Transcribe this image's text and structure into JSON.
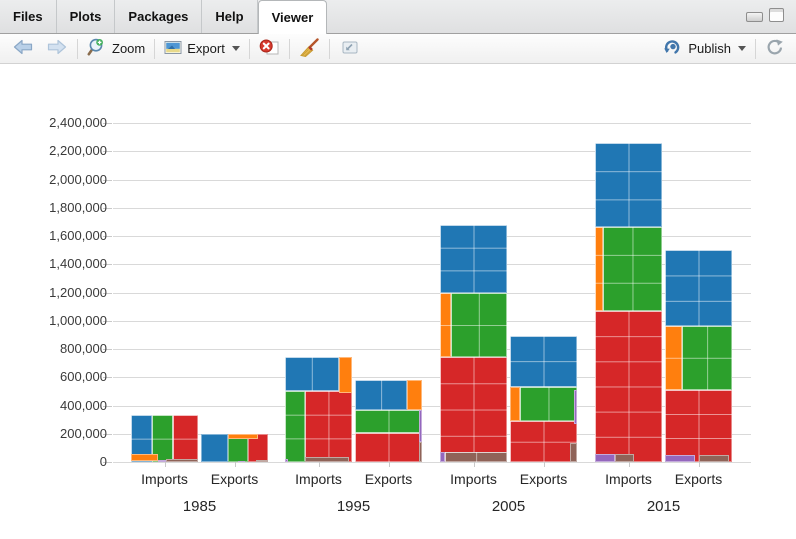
{
  "tabs": {
    "items": [
      {
        "label": "Files"
      },
      {
        "label": "Plots"
      },
      {
        "label": "Packages"
      },
      {
        "label": "Help"
      },
      {
        "label": "Viewer"
      }
    ],
    "active": "Viewer"
  },
  "window_controls": {
    "minimize": "minimize",
    "maximize": "maximize"
  },
  "toolbar": {
    "zoom": "Zoom",
    "export": "Export",
    "publish": "Publish"
  },
  "chart_data": {
    "type": "bar",
    "subtype": "treemap-stacked-bars",
    "title": "",
    "xlabel": "",
    "ylabel": "",
    "ylim": [
      0,
      2400000
    ],
    "ytick_step": 200000,
    "grid": true,
    "legend": false,
    "yticks": [
      "0",
      "200,000",
      "400,000",
      "600,000",
      "800,000",
      "1,000,000",
      "1,200,000",
      "1,400,000",
      "1,600,000",
      "1,800,000",
      "2,000,000",
      "2,200,000",
      "2,400,000"
    ],
    "colors": {
      "blue": "#2077b4",
      "green": "#2ca02c",
      "red": "#d62728",
      "orange": "#ff7f0e",
      "purple": "#9467bd",
      "brown": "#8f6358"
    },
    "groups": [
      {
        "year": "1985",
        "bars": [
          {
            "label": "Imports",
            "total": 335000,
            "segments": {
              "blue": 85000,
              "green": 90000,
              "red": 115000,
              "orange": 22000,
              "purple": 4000,
              "brown": 19000
            },
            "mosaic": [
              {
                "c": "blue",
                "x": 0,
                "y": 0,
                "w": 0.32,
                "h": 1
              },
              {
                "c": "green",
                "x": 0.32,
                "y": 0,
                "w": 0.3,
                "h": 1
              },
              {
                "c": "red",
                "x": 0.62,
                "y": 0,
                "w": 0.38,
                "h": 1
              },
              {
                "c": "orange",
                "x": 0,
                "y": 0.02,
                "w": 0.4,
                "h": 0.155
              },
              {
                "c": "purple",
                "x": 0.4,
                "y": 0,
                "w": 0.12,
                "h": 0.035
              },
              {
                "c": "brown",
                "x": 0.52,
                "y": 0,
                "w": 0.48,
                "h": 0.06
              }
            ]
          },
          {
            "label": "Exports",
            "total": 195000,
            "segments": {
              "blue": 76000,
              "green": 45000,
              "red": 52000,
              "orange": 15000,
              "purple": 2000,
              "brown": 5000
            },
            "mosaic": [
              {
                "c": "blue",
                "x": 0,
                "y": 0,
                "w": 0.4,
                "h": 1
              },
              {
                "c": "green",
                "x": 0.4,
                "y": 0,
                "w": 0.3,
                "h": 1
              },
              {
                "c": "red",
                "x": 0.7,
                "y": 0,
                "w": 0.3,
                "h": 1
              },
              {
                "c": "orange",
                "x": 0.4,
                "y": 0.83,
                "w": 0.45,
                "h": 0.17
              },
              {
                "c": "purple",
                "x": 0.55,
                "y": 0,
                "w": 0.1,
                "h": 0.05
              },
              {
                "c": "brown",
                "x": 0.82,
                "y": 0,
                "w": 0.18,
                "h": 0.06
              }
            ]
          }
        ]
      },
      {
        "year": "1995",
        "bars": [
          {
            "label": "Imports",
            "total": 740000,
            "segments": {
              "blue": 189000,
              "green": 147000,
              "red": 329000,
              "orange": 50000,
              "purple": 2000,
              "brown": 23000
            },
            "mosaic": [
              {
                "c": "green",
                "x": 0,
                "y": 0,
                "w": 0.3,
                "h": 0.68
              },
              {
                "c": "red",
                "x": 0.3,
                "y": 0,
                "w": 0.7,
                "h": 0.68
              },
              {
                "c": "blue",
                "x": 0,
                "y": 0.68,
                "w": 0.8,
                "h": 0.32
              },
              {
                "c": "orange",
                "x": 0.8,
                "y": 0.66,
                "w": 0.2,
                "h": 0.34
              },
              {
                "c": "purple",
                "x": 0,
                "y": 0,
                "w": 0.05,
                "h": 0.025
              },
              {
                "c": "brown",
                "x": 0.3,
                "y": 0,
                "w": 0.66,
                "h": 0.045
              }
            ]
          },
          {
            "label": "Exports",
            "total": 580000,
            "segments": {
              "blue": 167000,
              "green": 149000,
              "red": 200000,
              "orange": 47000,
              "purple": 11000,
              "brown": 6000
            },
            "mosaic": [
              {
                "c": "red",
                "x": 0,
                "y": 0,
                "w": 1,
                "h": 0.36
              },
              {
                "c": "green",
                "x": 0,
                "y": 0.36,
                "w": 1,
                "h": 0.27
              },
              {
                "c": "blue",
                "x": 0,
                "y": 0.63,
                "w": 0.78,
                "h": 0.37
              },
              {
                "c": "orange",
                "x": 0.78,
                "y": 0.63,
                "w": 0.22,
                "h": 0.37
              },
              {
                "c": "purple",
                "x": 0.95,
                "y": 0.25,
                "w": 0.05,
                "h": 0.38
              },
              {
                "c": "brown",
                "x": 0.95,
                "y": 0,
                "w": 0.05,
                "h": 0.25
              }
            ]
          }
        ]
      },
      {
        "year": "2005",
        "bars": [
          {
            "label": "Imports",
            "total": 1680000,
            "segments": {
              "blue": 482000,
              "green": 376000,
              "red": 674000,
              "orange": 77000,
              "purple": 5000,
              "brown": 66000
            },
            "mosaic": [
              {
                "c": "red",
                "x": 0,
                "y": 0,
                "w": 1,
                "h": 0.443
              },
              {
                "c": "orange",
                "x": 0,
                "y": 0.443,
                "w": 0.17,
                "h": 0.27
              },
              {
                "c": "green",
                "x": 0.17,
                "y": 0.443,
                "w": 0.83,
                "h": 0.27
              },
              {
                "c": "blue",
                "x": 0,
                "y": 0.713,
                "w": 1,
                "h": 0.287
              },
              {
                "c": "purple",
                "x": 0,
                "y": 0,
                "w": 0.07,
                "h": 0.042
              },
              {
                "c": "brown",
                "x": 0.07,
                "y": 0,
                "w": 0.93,
                "h": 0.042
              }
            ]
          },
          {
            "label": "Exports",
            "total": 890000,
            "segments": {
              "blue": 356000,
              "green": 191000,
              "red": 282000,
              "orange": 36000,
              "purple": 12000,
              "brown": 13000
            },
            "mosaic": [
              {
                "c": "red",
                "x": 0,
                "y": 0,
                "w": 1,
                "h": 0.33
              },
              {
                "c": "orange",
                "x": 0,
                "y": 0.33,
                "w": 0.15,
                "h": 0.27
              },
              {
                "c": "green",
                "x": 0.15,
                "y": 0.33,
                "w": 0.85,
                "h": 0.27
              },
              {
                "c": "blue",
                "x": 0,
                "y": 0.6,
                "w": 1,
                "h": 0.4
              },
              {
                "c": "purple",
                "x": 0.95,
                "y": 0.3,
                "w": 0.05,
                "h": 0.27
              },
              {
                "c": "brown",
                "x": 0.9,
                "y": 0,
                "w": 0.1,
                "h": 0.15
              }
            ]
          }
        ]
      },
      {
        "year": "2015",
        "bars": [
          {
            "label": "Imports",
            "total": 2260000,
            "segments": {
              "blue": 600000,
              "green": 521000,
              "red": 1036000,
              "orange": 71000,
              "purple": 17000,
              "brown": 15000
            },
            "mosaic": [
              {
                "c": "red",
                "x": 0,
                "y": 0,
                "w": 1,
                "h": 0.473
              },
              {
                "c": "orange",
                "x": 0,
                "y": 0.473,
                "w": 0.12,
                "h": 0.262
              },
              {
                "c": "green",
                "x": 0.12,
                "y": 0.473,
                "w": 0.88,
                "h": 0.262
              },
              {
                "c": "blue",
                "x": 0,
                "y": 0.735,
                "w": 1,
                "h": 0.265
              },
              {
                "c": "purple",
                "x": 0,
                "y": 0,
                "w": 0.3,
                "h": 0.025
              },
              {
                "c": "brown",
                "x": 0.3,
                "y": 0,
                "w": 0.28,
                "h": 0.025
              }
            ]
          },
          {
            "label": "Exports",
            "total": 1500000,
            "segments": {
              "blue": 540000,
              "green": 338000,
              "red": 461000,
              "orange": 113000,
              "purple": 24000,
              "brown": 24000
            },
            "mosaic": [
              {
                "c": "red",
                "x": 0,
                "y": 0,
                "w": 1,
                "h": 0.34
              },
              {
                "c": "orange",
                "x": 0,
                "y": 0.34,
                "w": 0.25,
                "h": 0.3
              },
              {
                "c": "green",
                "x": 0.25,
                "y": 0.34,
                "w": 0.75,
                "h": 0.3
              },
              {
                "c": "blue",
                "x": 0,
                "y": 0.64,
                "w": 1,
                "h": 0.36
              },
              {
                "c": "purple",
                "x": 0,
                "y": 0,
                "w": 0.45,
                "h": 0.035
              },
              {
                "c": "brown",
                "x": 0.5,
                "y": 0,
                "w": 0.45,
                "h": 0.035
              }
            ]
          }
        ]
      }
    ]
  }
}
